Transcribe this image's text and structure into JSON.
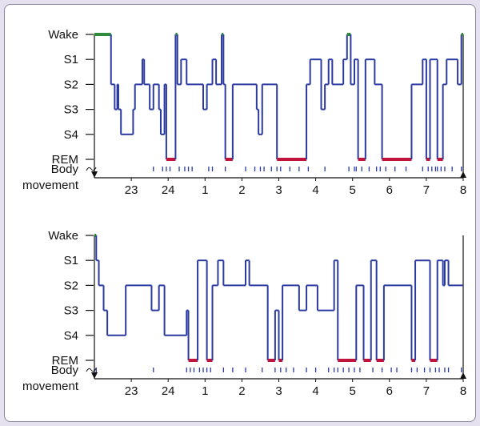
{
  "chart_data": [
    {
      "type": "line",
      "stage_labels": [
        "Wake",
        "S1",
        "S2",
        "S3",
        "S4",
        "REM"
      ],
      "body_movement_label": [
        "Body",
        "movement"
      ],
      "x_ticks": [
        "23",
        "24",
        "1",
        "2",
        "3",
        "4",
        "5",
        "6",
        "7",
        "8"
      ],
      "x_range_hours": [
        22.0,
        32.0
      ],
      "hypnogram": [
        [
          22.0,
          "Wake"
        ],
        [
          22.45,
          "S2"
        ],
        [
          22.55,
          "S3"
        ],
        [
          22.62,
          "S2"
        ],
        [
          22.65,
          "S3"
        ],
        [
          22.72,
          "S4"
        ],
        [
          23.05,
          "S3"
        ],
        [
          23.1,
          "S2"
        ],
        [
          23.3,
          "S1"
        ],
        [
          23.35,
          "S2"
        ],
        [
          23.5,
          "S3"
        ],
        [
          23.6,
          "S2"
        ],
        [
          23.75,
          "S3"
        ],
        [
          23.8,
          "S4"
        ],
        [
          23.9,
          "S2"
        ],
        [
          23.95,
          "REM"
        ],
        [
          24.2,
          "Wake"
        ],
        [
          24.25,
          "S2"
        ],
        [
          24.35,
          "S1"
        ],
        [
          24.5,
          "S2"
        ],
        [
          24.95,
          "S3"
        ],
        [
          25.05,
          "S2"
        ],
        [
          25.2,
          "S1"
        ],
        [
          25.3,
          "S2"
        ],
        [
          25.45,
          "Wake"
        ],
        [
          25.5,
          "S2"
        ],
        [
          25.55,
          "REM"
        ],
        [
          25.75,
          "S2"
        ],
        [
          26.4,
          "S3"
        ],
        [
          26.45,
          "S4"
        ],
        [
          26.55,
          "S2"
        ],
        [
          26.95,
          "REM"
        ],
        [
          27.75,
          "S2"
        ],
        [
          27.85,
          "S1"
        ],
        [
          28.15,
          "S3"
        ],
        [
          28.25,
          "S2"
        ],
        [
          28.35,
          "S1"
        ],
        [
          28.45,
          "S2"
        ],
        [
          28.75,
          "S1"
        ],
        [
          28.85,
          "Wake"
        ],
        [
          28.95,
          "S2"
        ],
        [
          29.05,
          "S1"
        ],
        [
          29.15,
          "REM"
        ],
        [
          29.35,
          "S1"
        ],
        [
          29.6,
          "S2"
        ],
        [
          29.8,
          "REM"
        ],
        [
          30.6,
          "S2"
        ],
        [
          30.9,
          "S1"
        ],
        [
          31.0,
          "REM"
        ],
        [
          31.1,
          "S1"
        ],
        [
          31.3,
          "REM"
        ],
        [
          31.45,
          "S2"
        ],
        [
          31.55,
          "S1"
        ],
        [
          31.85,
          "S2"
        ],
        [
          31.95,
          "Wake"
        ],
        [
          32.0,
          "Wake"
        ]
      ],
      "body_movements": [
        23.6,
        23.85,
        23.95,
        24.05,
        24.3,
        24.45,
        24.55,
        24.65,
        25.1,
        25.2,
        25.55,
        26.1,
        26.35,
        26.5,
        26.6,
        26.8,
        26.95,
        27.05,
        27.3,
        27.55,
        27.8,
        28.25,
        28.9,
        29.05,
        29.1,
        29.25,
        29.45,
        29.65,
        29.75,
        29.9,
        30.15,
        30.45,
        30.9,
        31.05,
        31.15,
        31.25,
        31.3,
        31.4,
        31.5,
        31.7,
        31.95
      ],
      "stage_colors": {
        "Wake": "#2e8b3a",
        "REM": "#c0143c",
        "default": "#2b3aa0"
      }
    },
    {
      "type": "line",
      "stage_labels": [
        "Wake",
        "S1",
        "S2",
        "S3",
        "S4",
        "REM"
      ],
      "body_movement_label": [
        "Body",
        "movement"
      ],
      "x_ticks": [
        "23",
        "24",
        "1",
        "2",
        "3",
        "4",
        "5",
        "6",
        "7",
        "8"
      ],
      "x_range_hours": [
        22.0,
        32.0
      ],
      "hypnogram": [
        [
          22.0,
          "Wake"
        ],
        [
          22.05,
          "S1"
        ],
        [
          22.12,
          "S2"
        ],
        [
          22.25,
          "S3"
        ],
        [
          22.35,
          "S4"
        ],
        [
          22.85,
          "S2"
        ],
        [
          23.55,
          "S3"
        ],
        [
          23.75,
          "S2"
        ],
        [
          23.9,
          "S4"
        ],
        [
          24.5,
          "S3"
        ],
        [
          24.55,
          "REM"
        ],
        [
          24.8,
          "S1"
        ],
        [
          25.05,
          "REM"
        ],
        [
          25.2,
          "S2"
        ],
        [
          25.35,
          "S1"
        ],
        [
          25.5,
          "S2"
        ],
        [
          26.1,
          "S1"
        ],
        [
          26.2,
          "S2"
        ],
        [
          26.7,
          "REM"
        ],
        [
          26.9,
          "S3"
        ],
        [
          27.0,
          "REM"
        ],
        [
          27.1,
          "S2"
        ],
        [
          27.55,
          "S3"
        ],
        [
          27.75,
          "S2"
        ],
        [
          28.05,
          "S3"
        ],
        [
          28.5,
          "S1"
        ],
        [
          28.6,
          "REM"
        ],
        [
          29.1,
          "S2"
        ],
        [
          29.3,
          "REM"
        ],
        [
          29.5,
          "S1"
        ],
        [
          29.65,
          "REM"
        ],
        [
          29.85,
          "S2"
        ],
        [
          30.6,
          "REM"
        ],
        [
          30.7,
          "S1"
        ],
        [
          31.1,
          "REM"
        ],
        [
          31.3,
          "S1"
        ],
        [
          31.45,
          "S2"
        ],
        [
          31.5,
          "S1"
        ],
        [
          31.6,
          "S2"
        ],
        [
          32.0,
          "S2"
        ]
      ],
      "body_movements": [
        22.05,
        23.6,
        24.5,
        24.6,
        24.7,
        24.85,
        24.95,
        25.05,
        25.15,
        25.5,
        25.75,
        26.1,
        26.55,
        26.9,
        27.05,
        27.2,
        27.4,
        27.75,
        28.0,
        28.35,
        28.5,
        28.6,
        28.75,
        28.9,
        29.05,
        29.2,
        29.55,
        29.8,
        30.05,
        30.2,
        30.6,
        30.75,
        30.95,
        31.1,
        31.25,
        31.35,
        31.5,
        31.6,
        31.95
      ],
      "stage_colors": {
        "Wake": "#2e8b3a",
        "REM": "#c0143c",
        "default": "#2b3aa0"
      }
    }
  ]
}
